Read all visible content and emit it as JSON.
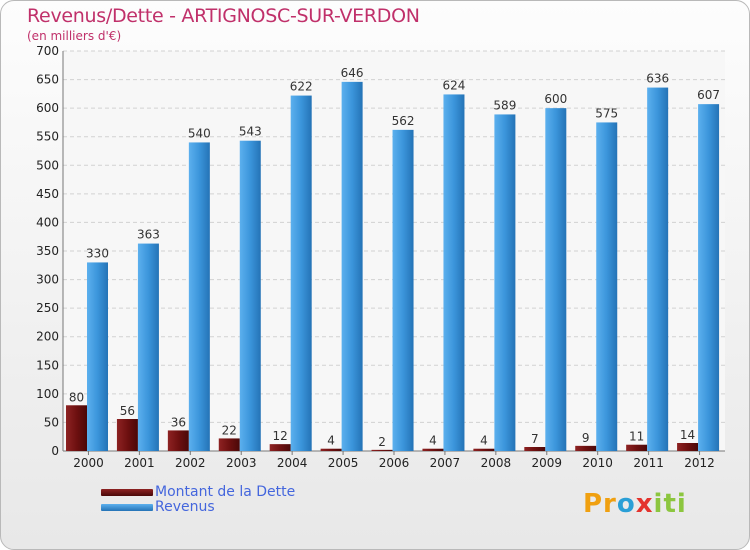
{
  "title": "Revenus/Dette - ARTIGNOSC-SUR-VERDON",
  "subtitle": "(en milliers d'€)",
  "legend": {
    "dette": "Montant de la Dette",
    "revenus": "Revenus"
  },
  "logo": {
    "p": "Pr",
    "o": "o",
    "x": "x",
    "iti": "iti"
  },
  "colors": {
    "dette": "#7a1414",
    "revenus": "#3d97dd",
    "title": "#c0306a",
    "legend_text": "#4466dd"
  },
  "chart_data": {
    "type": "bar",
    "categories": [
      "2000",
      "2001",
      "2002",
      "2003",
      "2004",
      "2005",
      "2006",
      "2007",
      "2008",
      "2009",
      "2010",
      "2011",
      "2012"
    ],
    "series": [
      {
        "name": "Montant de la Dette",
        "values": [
          80,
          56,
          36,
          22,
          12,
          4,
          2,
          4,
          4,
          7,
          9,
          11,
          14
        ]
      },
      {
        "name": "Revenus",
        "values": [
          330,
          363,
          540,
          543,
          622,
          646,
          562,
          624,
          589,
          600,
          575,
          636,
          607
        ]
      }
    ],
    "ylim": [
      0,
      700
    ],
    "yticks": [
      0,
      50,
      100,
      150,
      200,
      250,
      300,
      350,
      400,
      450,
      500,
      550,
      600,
      650,
      700
    ],
    "grid": true
  }
}
